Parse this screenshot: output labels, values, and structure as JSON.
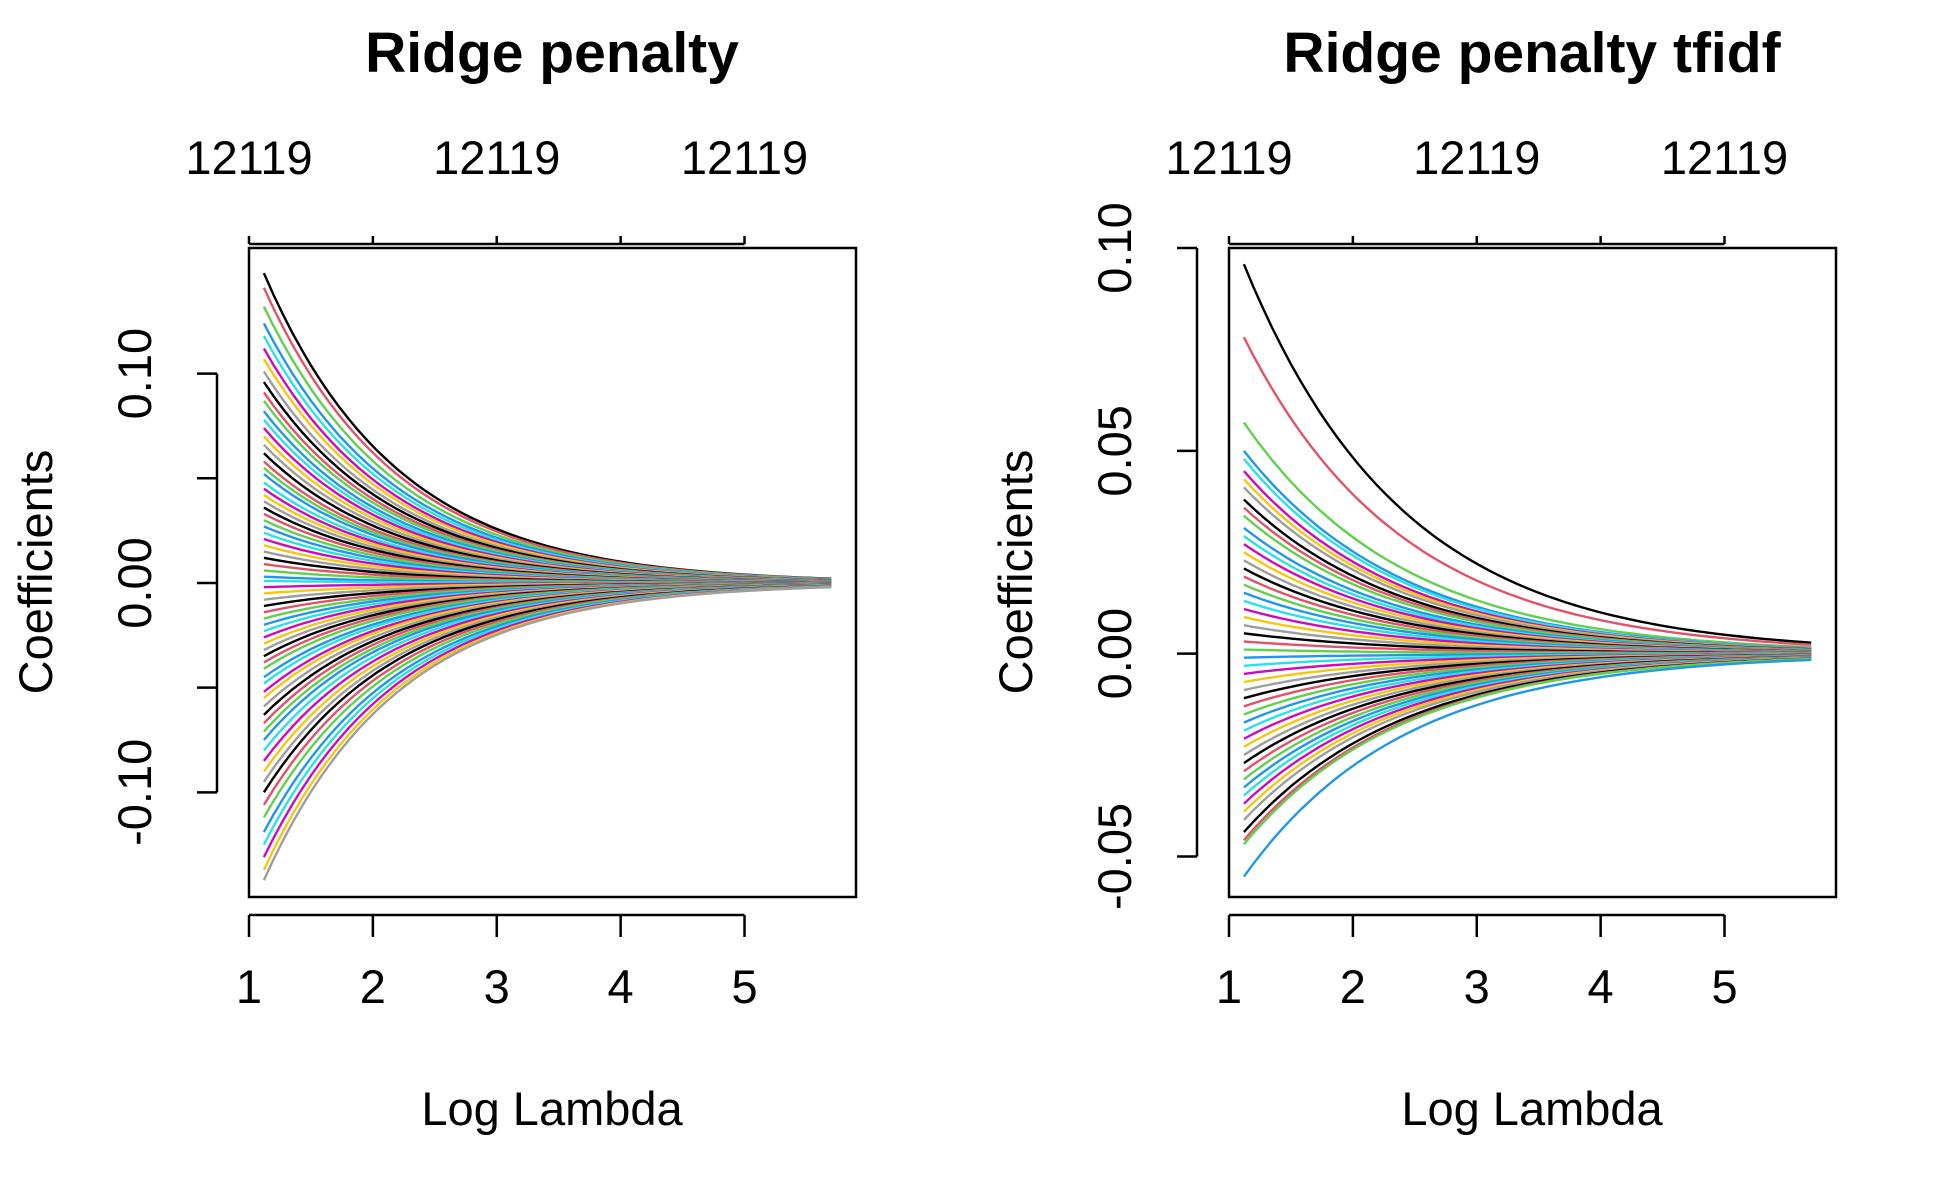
{
  "chart_data": [
    {
      "type": "line",
      "title": "Ridge penalty",
      "xlabel": "Log Lambda",
      "ylabel": "Coefficients",
      "xlim": [
        1.0,
        5.9
      ],
      "ylim": [
        -0.15,
        0.16
      ],
      "x_ticks": [
        1,
        2,
        3,
        4,
        5
      ],
      "x_tick_labels": [
        "1",
        "2",
        "3",
        "4",
        "5"
      ],
      "y_ticks": [
        -0.1,
        -0.05,
        0.0,
        0.05,
        0.1
      ],
      "y_tick_labels": [
        "-0.10",
        "",
        "0.00",
        "",
        "0.10"
      ],
      "top_ticks": [
        1,
        3,
        5
      ],
      "top_tick_labels": [
        "12119",
        "12119",
        "12119"
      ],
      "grid": false,
      "x_range": [
        1.12,
        5.7
      ],
      "decay_rate": 0.93,
      "coef_at_min_lambda": [
        0.148,
        0.141,
        0.132,
        0.124,
        0.118,
        0.112,
        0.107,
        0.101,
        0.096,
        0.091,
        0.087,
        0.082,
        0.078,
        0.074,
        0.07,
        0.066,
        0.062,
        0.058,
        0.055,
        0.052,
        0.048,
        0.045,
        0.042,
        0.039,
        0.036,
        0.033,
        0.03,
        0.027,
        0.024,
        0.021,
        0.018,
        0.015,
        0.012,
        0.009,
        0.006,
        0.003,
        0.001,
        -0.002,
        -0.005,
        -0.008,
        -0.011,
        -0.014,
        -0.017,
        -0.02,
        -0.023,
        -0.026,
        -0.029,
        -0.032,
        -0.035,
        -0.038,
        -0.041,
        -0.045,
        -0.048,
        -0.052,
        -0.055,
        -0.059,
        -0.063,
        -0.067,
        -0.071,
        -0.075,
        -0.08,
        -0.085,
        -0.09,
        -0.095,
        -0.1,
        -0.106,
        -0.112,
        -0.119,
        -0.125,
        -0.131,
        -0.137,
        -0.142
      ],
      "palette": [
        "#000000",
        "#DF536B",
        "#61D04F",
        "#2297E6",
        "#28E2E5",
        "#CD0BBC",
        "#F5C710",
        "#9E9E9E"
      ]
    },
    {
      "type": "line",
      "title": "Ridge penalty tfidf",
      "xlabel": "Log Lambda",
      "ylabel": "Coefficients",
      "xlim": [
        1.0,
        5.9
      ],
      "ylim": [
        -0.06,
        0.1
      ],
      "x_ticks": [
        1,
        2,
        3,
        4,
        5
      ],
      "x_tick_labels": [
        "1",
        "2",
        "3",
        "4",
        "5"
      ],
      "y_ticks": [
        -0.05,
        0.0,
        0.05,
        0.1
      ],
      "y_tick_labels": [
        "-0.05",
        "0.00",
        "0.05",
        "0.10"
      ],
      "top_ticks": [
        1,
        3,
        5
      ],
      "top_tick_labels": [
        "12119",
        "12119",
        "12119"
      ],
      "grid": false,
      "x_range": [
        1.12,
        5.7
      ],
      "decay_rate": 0.78,
      "coef_at_min_lambda": [
        0.096,
        0.078,
        0.057,
        0.05,
        0.048,
        0.045,
        0.043,
        0.041,
        0.038,
        0.036,
        0.034,
        0.031,
        0.029,
        0.027,
        0.025,
        0.023,
        0.021,
        0.019,
        0.017,
        0.015,
        0.013,
        0.011,
        0.009,
        0.007,
        0.005,
        0.003,
        0.001,
        -0.001,
        -0.003,
        -0.005,
        -0.007,
        -0.009,
        -0.011,
        -0.013,
        -0.015,
        -0.017,
        -0.019,
        -0.021,
        -0.023,
        -0.025,
        -0.027,
        -0.029,
        -0.031,
        -0.033,
        -0.035,
        -0.037,
        -0.039,
        -0.041,
        -0.044,
        -0.046,
        -0.047,
        -0.055
      ],
      "palette": [
        "#000000",
        "#DF536B",
        "#61D04F",
        "#2297E6",
        "#28E2E5",
        "#CD0BBC",
        "#F5C710",
        "#9E9E9E"
      ]
    }
  ]
}
